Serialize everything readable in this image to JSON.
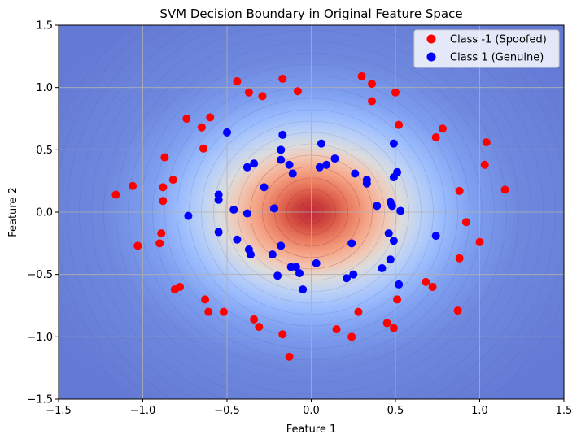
{
  "chart_data": {
    "type": "scatter",
    "title": "SVM Decision Boundary in Original Feature Space",
    "xlabel": "Feature 1",
    "ylabel": "Feature 2",
    "xlim": [
      -1.5,
      1.5
    ],
    "ylim": [
      -1.5,
      1.5
    ],
    "xticks": [
      "−1.5",
      "−1.0",
      "−0.5",
      "0.0",
      "0.5",
      "1.0",
      "1.5"
    ],
    "yticks": [
      "−1.5",
      "−1.0",
      "−0.5",
      "0.0",
      "0.5",
      "1.0",
      "1.5"
    ],
    "grid": true,
    "legend_position": "top-right",
    "background": {
      "kind": "filled-contour",
      "colormap": "coolwarm",
      "center": [
        0.0,
        0.0
      ],
      "description_colors": [
        "#b40426",
        "#f4987a",
        "#dddcdc",
        "#9abbff",
        "#3b4cc0"
      ]
    },
    "series": [
      {
        "name": "Class -1 (Spoofed)",
        "color": "#ff0000",
        "points": [
          [
            -0.82,
            0.26
          ],
          [
            -0.29,
            0.93
          ],
          [
            0.3,
            1.09
          ],
          [
            0.36,
            1.03
          ],
          [
            0.36,
            0.89
          ],
          [
            0.5,
            0.96
          ],
          [
            -0.17,
            1.07
          ],
          [
            -0.44,
            1.05
          ],
          [
            -0.37,
            0.96
          ],
          [
            -0.08,
            0.97
          ],
          [
            -0.6,
            0.76
          ],
          [
            -0.74,
            0.75
          ],
          [
            -0.65,
            0.68
          ],
          [
            -0.64,
            0.51
          ],
          [
            -0.87,
            0.44
          ],
          [
            -0.88,
            0.2
          ],
          [
            -1.06,
            0.21
          ],
          [
            -1.16,
            0.14
          ],
          [
            -0.88,
            0.09
          ],
          [
            -0.89,
            -0.17
          ],
          [
            -0.9,
            -0.25
          ],
          [
            -1.03,
            -0.27
          ],
          [
            -0.78,
            -0.6
          ],
          [
            -0.81,
            -0.62
          ],
          [
            -0.63,
            -0.7
          ],
          [
            -0.61,
            -0.8
          ],
          [
            -0.52,
            -0.8
          ],
          [
            -0.34,
            -0.86
          ],
          [
            -0.31,
            -0.92
          ],
          [
            -0.17,
            -0.98
          ],
          [
            -0.13,
            -1.16
          ],
          [
            0.15,
            -0.94
          ],
          [
            0.24,
            -1.0
          ],
          [
            0.28,
            -0.8
          ],
          [
            0.45,
            -0.89
          ],
          [
            0.49,
            -0.93
          ],
          [
            0.51,
            -0.7
          ],
          [
            0.52,
            0.7
          ],
          [
            0.74,
            0.6
          ],
          [
            0.78,
            0.67
          ],
          [
            0.88,
            0.17
          ],
          [
            1.04,
            0.56
          ],
          [
            1.03,
            0.38
          ],
          [
            1.15,
            0.18
          ],
          [
            0.92,
            -0.08
          ],
          [
            1.0,
            -0.24
          ],
          [
            0.88,
            -0.37
          ],
          [
            0.68,
            -0.56
          ],
          [
            0.72,
            -0.6
          ],
          [
            0.87,
            -0.79
          ]
        ]
      },
      {
        "name": "Class 1 (Genuine)",
        "color": "#0000ff",
        "points": [
          [
            -0.5,
            0.64
          ],
          [
            -0.17,
            0.62
          ],
          [
            0.06,
            0.55
          ],
          [
            -0.18,
            0.5
          ],
          [
            -0.18,
            0.42
          ],
          [
            -0.13,
            0.38
          ],
          [
            -0.34,
            0.39
          ],
          [
            -0.38,
            0.36
          ],
          [
            -0.11,
            0.31
          ],
          [
            0.05,
            0.36
          ],
          [
            0.09,
            0.38
          ],
          [
            0.14,
            0.43
          ],
          [
            0.49,
            0.55
          ],
          [
            0.51,
            0.32
          ],
          [
            0.49,
            0.28
          ],
          [
            0.33,
            0.26
          ],
          [
            0.33,
            0.23
          ],
          [
            0.26,
            0.31
          ],
          [
            -0.28,
            0.2
          ],
          [
            -0.55,
            0.14
          ],
          [
            -0.55,
            0.1
          ],
          [
            -0.46,
            0.02
          ],
          [
            -0.73,
            -0.03
          ],
          [
            -0.38,
            -0.01
          ],
          [
            -0.22,
            0.03
          ],
          [
            -0.55,
            -0.16
          ],
          [
            -0.44,
            -0.22
          ],
          [
            -0.37,
            -0.3
          ],
          [
            -0.36,
            -0.34
          ],
          [
            -0.23,
            -0.34
          ],
          [
            -0.18,
            -0.27
          ],
          [
            -0.2,
            -0.51
          ],
          [
            -0.12,
            -0.44
          ],
          [
            -0.09,
            -0.44
          ],
          [
            -0.07,
            -0.49
          ],
          [
            -0.05,
            -0.62
          ],
          [
            0.03,
            -0.41
          ],
          [
            0.21,
            -0.53
          ],
          [
            0.24,
            -0.25
          ],
          [
            0.25,
            -0.5
          ],
          [
            0.39,
            0.05
          ],
          [
            0.47,
            0.08
          ],
          [
            0.48,
            0.05
          ],
          [
            0.53,
            0.01
          ],
          [
            0.46,
            -0.17
          ],
          [
            0.49,
            -0.23
          ],
          [
            0.42,
            -0.45
          ],
          [
            0.47,
            -0.38
          ],
          [
            0.52,
            -0.58
          ],
          [
            0.74,
            -0.19
          ]
        ]
      }
    ]
  }
}
